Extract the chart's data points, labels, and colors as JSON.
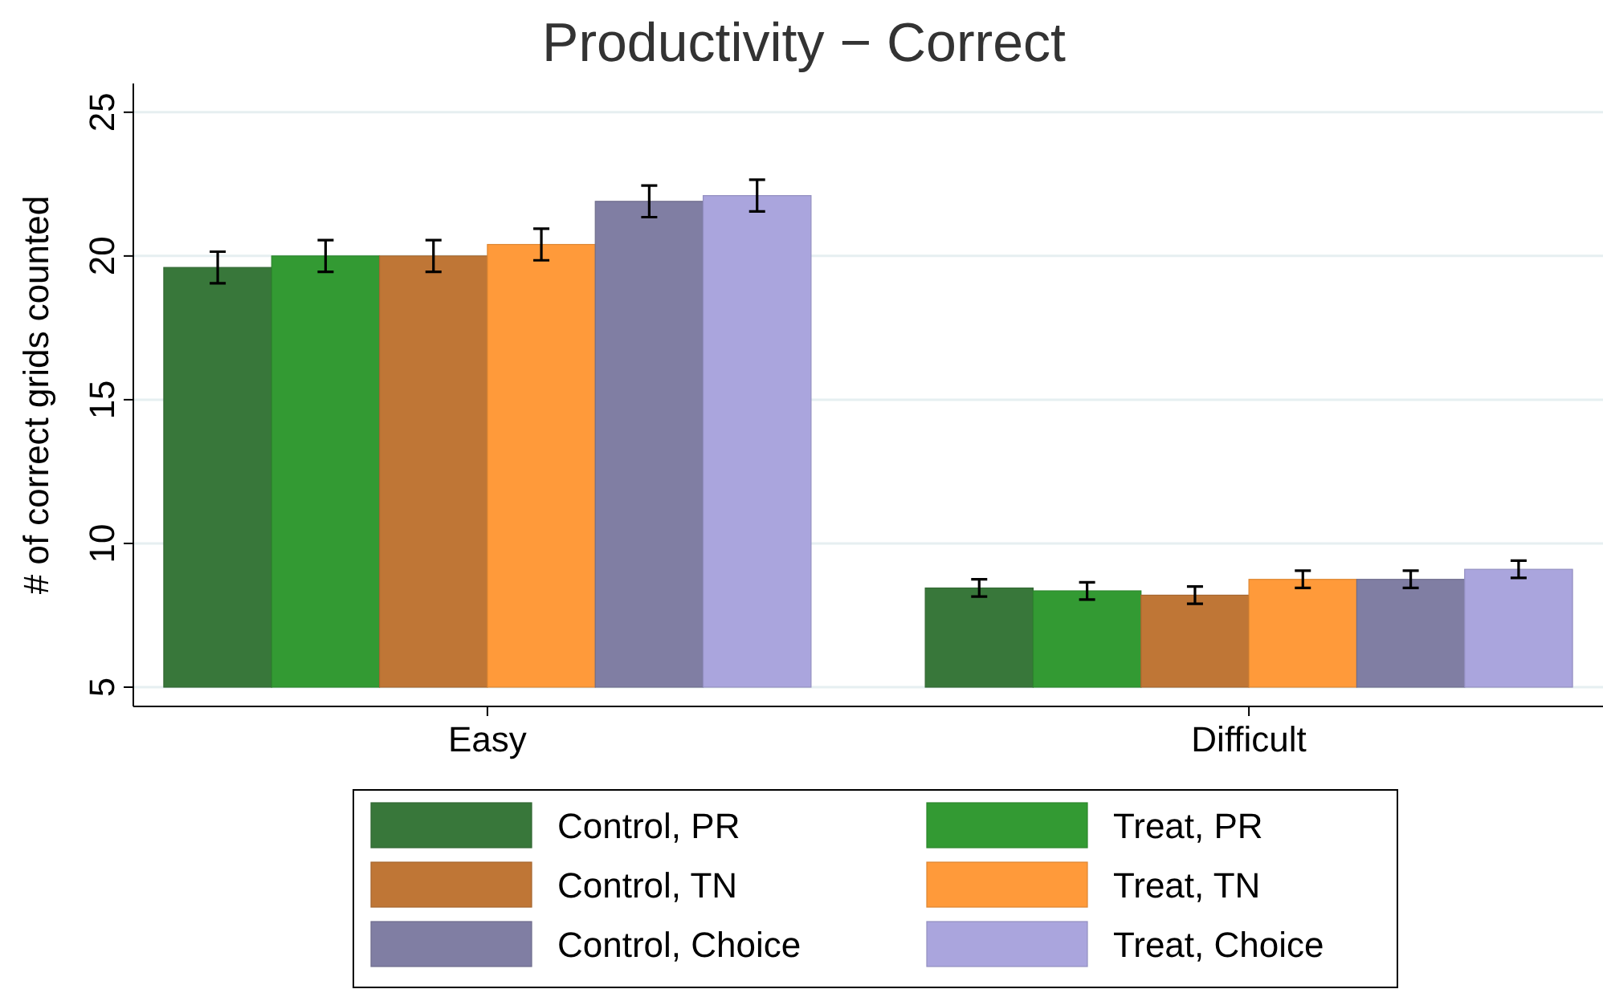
{
  "chart_data": {
    "type": "bar",
    "title": "Productivity − Correct",
    "ylabel": "# of correct grids counted",
    "categories": [
      "Easy",
      "Difficult"
    ],
    "series": [
      {
        "name": "Control, PR",
        "color": "#38773a",
        "values": [
          19.6,
          8.45
        ],
        "errors": [
          0.55,
          0.3
        ]
      },
      {
        "name": "Treat, PR",
        "color": "#339a33",
        "values": [
          20.0,
          8.35
        ],
        "errors": [
          0.55,
          0.3
        ]
      },
      {
        "name": "Control, TN",
        "color": "#bf7636",
        "values": [
          20.0,
          8.2
        ],
        "errors": [
          0.55,
          0.3
        ]
      },
      {
        "name": "Treat, TN",
        "color": "#ff9a3a",
        "values": [
          20.4,
          8.75
        ],
        "errors": [
          0.55,
          0.3
        ]
      },
      {
        "name": "Control, Choice",
        "color": "#807ea3",
        "values": [
          21.9,
          8.75
        ],
        "errors": [
          0.55,
          0.3
        ]
      },
      {
        "name": "Treat, Choice",
        "color": "#aaa5dd",
        "values": [
          22.1,
          9.1
        ],
        "errors": [
          0.55,
          0.3
        ]
      }
    ],
    "ylim": [
      5,
      26
    ],
    "yticks": [
      5,
      10,
      15,
      20,
      25
    ],
    "grid": "y",
    "legend": "bottom"
  }
}
